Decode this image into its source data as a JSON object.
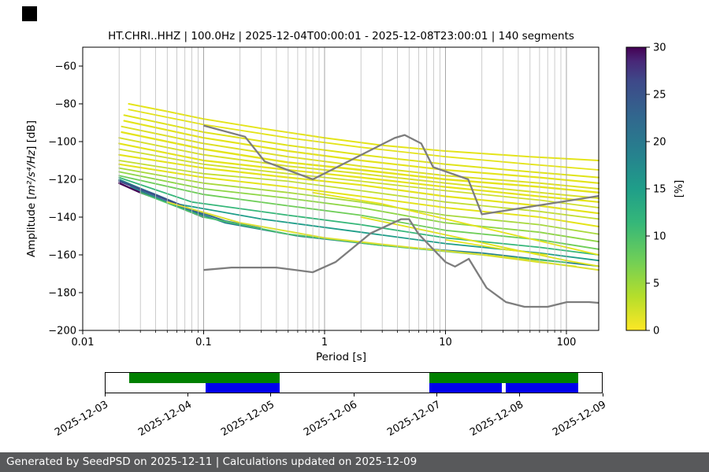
{
  "title": "HT.CHRI..HHZ | 100.0Hz | 2025-12-04T00:00:01 - 2025-12-08T23:00:01 | 140 segments",
  "footer": {
    "text": "Generated by SeedPSD on 2025-12-11 | Calculations updated on 2025-12-09"
  },
  "chart_data": {
    "type": "heatmap",
    "subtype": "seismic-ppsd",
    "title": "HT.CHRI..HHZ | 100.0Hz | 2025-12-04T00:00:01 - 2025-12-08T23:00:01 | 140 segments",
    "xlabel": "Period [s]",
    "ylabel": "Amplitude [m²/s⁴/Hz] [dB]",
    "ylabel_parts": {
      "prefix": "Amplitude [",
      "math": "m²/s⁴/Hz",
      "suffix": "] [dB]"
    },
    "xscale": "log",
    "xlim": [
      0.01,
      185
    ],
    "ylim": [
      -200,
      -50
    ],
    "x_ticks": [
      0.01,
      0.1,
      1,
      10,
      100
    ],
    "x_tick_labels": [
      "0.01",
      "0.1",
      "1",
      "10",
      "100"
    ],
    "y_ticks": [
      -60,
      -80,
      -100,
      -120,
      -140,
      -160,
      -180,
      -200
    ],
    "y_tick_labels": [
      "−60",
      "−80",
      "−100",
      "−120",
      "−140",
      "−160",
      "−180",
      "−200"
    ],
    "grid": "vertical-log",
    "colorbar": {
      "label": "[%]",
      "min": 0,
      "max": 30,
      "ticks": [
        0,
        5,
        10,
        15,
        20,
        25,
        30
      ],
      "colormap": "viridis_r",
      "stops": [
        {
          "t": 0,
          "c": "#fde725"
        },
        {
          "t": 0.12,
          "c": "#b5de2b"
        },
        {
          "t": 0.25,
          "c": "#6ece58"
        },
        {
          "t": 0.38,
          "c": "#35b779"
        },
        {
          "t": 0.5,
          "c": "#1f9e89"
        },
        {
          "t": 0.62,
          "c": "#26828e"
        },
        {
          "t": 0.75,
          "c": "#31688e"
        },
        {
          "t": 0.88,
          "c": "#3e4989"
        },
        {
          "t": 0.95,
          "c": "#482878"
        },
        {
          "t": 1,
          "c": "#440154"
        }
      ]
    },
    "noise_models": {
      "color": "#7d7d7d",
      "high": [
        [
          0.1,
          -91.5
        ],
        [
          0.22,
          -97.4
        ],
        [
          0.32,
          -110.5
        ],
        [
          0.8,
          -120.0
        ],
        [
          3.8,
          -98.1
        ],
        [
          4.6,
          -96.5
        ],
        [
          6.3,
          -101.0
        ],
        [
          7.9,
          -113.5
        ],
        [
          15.4,
          -120.0
        ],
        [
          20.0,
          -138.5
        ],
        [
          185.0,
          -128.8
        ]
      ],
      "low": [
        [
          0.1,
          -168.0
        ],
        [
          0.17,
          -166.7
        ],
        [
          0.4,
          -166.7
        ],
        [
          0.8,
          -169.2
        ],
        [
          1.24,
          -163.7
        ],
        [
          2.4,
          -148.6
        ],
        [
          4.3,
          -141.1
        ],
        [
          5.0,
          -141.1
        ],
        [
          6.0,
          -149.0
        ],
        [
          10.0,
          -163.8
        ],
        [
          12.0,
          -166.2
        ],
        [
          15.6,
          -162.1
        ],
        [
          21.9,
          -177.5
        ],
        [
          31.6,
          -185.0
        ],
        [
          45.0,
          -187.5
        ],
        [
          70.0,
          -187.5
        ],
        [
          101.0,
          -185.0
        ],
        [
          154.0,
          -185.0
        ],
        [
          185.0,
          -185.4
        ]
      ]
    },
    "ppsd_streaks": [
      {
        "c": "#e4e419",
        "w": 2,
        "p": [
          [
            0.024,
            -80
          ],
          [
            0.05,
            -84
          ],
          [
            0.1,
            -88
          ],
          [
            0.3,
            -93
          ],
          [
            1,
            -98
          ],
          [
            3,
            -102
          ],
          [
            10,
            -105
          ],
          [
            50,
            -108
          ],
          [
            185,
            -110
          ]
        ]
      },
      {
        "c": "#e4e419",
        "w": 1.8,
        "p": [
          [
            0.024,
            -83
          ],
          [
            0.1,
            -91
          ],
          [
            0.5,
            -98
          ],
          [
            2,
            -103
          ],
          [
            10,
            -108
          ],
          [
            50,
            -112
          ],
          [
            185,
            -115
          ]
        ]
      },
      {
        "c": "#dfe318",
        "w": 2,
        "p": [
          [
            0.022,
            -86
          ],
          [
            0.1,
            -95
          ],
          [
            0.5,
            -102
          ],
          [
            2,
            -107
          ],
          [
            10,
            -112
          ],
          [
            50,
            -116
          ],
          [
            185,
            -119
          ]
        ]
      },
      {
        "c": "#e4e419",
        "w": 2.2,
        "p": [
          [
            0.022,
            -89
          ],
          [
            0.1,
            -98
          ],
          [
            0.5,
            -105
          ],
          [
            2,
            -110
          ],
          [
            10,
            -115
          ],
          [
            60,
            -119
          ],
          [
            185,
            -122
          ]
        ]
      },
      {
        "c": "#dde025",
        "w": 2,
        "p": [
          [
            0.021,
            -92
          ],
          [
            0.1,
            -101
          ],
          [
            0.5,
            -108
          ],
          [
            2,
            -113
          ],
          [
            10,
            -118
          ],
          [
            60,
            -122
          ],
          [
            185,
            -125
          ]
        ]
      },
      {
        "c": "#e4e419",
        "w": 2.4,
        "p": [
          [
            0.021,
            -95
          ],
          [
            0.1,
            -104
          ],
          [
            0.5,
            -111
          ],
          [
            2,
            -115
          ],
          [
            10,
            -120
          ],
          [
            60,
            -124
          ],
          [
            185,
            -127
          ]
        ]
      },
      {
        "c": "#d8e02a",
        "w": 2,
        "p": [
          [
            0.02,
            -98
          ],
          [
            0.1,
            -107
          ],
          [
            0.5,
            -113
          ],
          [
            2,
            -117
          ],
          [
            10,
            -122
          ],
          [
            60,
            -127
          ],
          [
            185,
            -130
          ]
        ]
      },
      {
        "c": "#e4e419",
        "w": 2.2,
        "p": [
          [
            0.02,
            -101
          ],
          [
            0.1,
            -110
          ],
          [
            0.5,
            -115
          ],
          [
            2,
            -119
          ],
          [
            10,
            -124
          ],
          [
            60,
            -129
          ],
          [
            185,
            -132
          ]
        ]
      },
      {
        "c": "#cfdf2c",
        "w": 1.8,
        "p": [
          [
            0.02,
            -104
          ],
          [
            0.1,
            -112
          ],
          [
            0.5,
            -117
          ],
          [
            2,
            -121
          ],
          [
            10,
            -126
          ],
          [
            60,
            -131
          ],
          [
            185,
            -135
          ]
        ]
      },
      {
        "c": "#e4e419",
        "w": 2.2,
        "p": [
          [
            0.02,
            -107
          ],
          [
            0.1,
            -114
          ],
          [
            0.5,
            -119
          ],
          [
            2,
            -123
          ],
          [
            10,
            -129
          ],
          [
            60,
            -134
          ],
          [
            185,
            -138
          ]
        ]
      },
      {
        "c": "#c3de30",
        "w": 1.8,
        "p": [
          [
            0.02,
            -110
          ],
          [
            0.1,
            -117
          ],
          [
            0.5,
            -121
          ],
          [
            2,
            -126
          ],
          [
            10,
            -132
          ],
          [
            60,
            -137
          ],
          [
            185,
            -141
          ]
        ]
      },
      {
        "c": "#e4e419",
        "w": 2,
        "p": [
          [
            0.02,
            -112
          ],
          [
            0.1,
            -119
          ],
          [
            0.5,
            -124
          ],
          [
            2,
            -129
          ],
          [
            10,
            -135
          ],
          [
            60,
            -140
          ],
          [
            185,
            -145
          ]
        ]
      },
      {
        "c": "#a8d93c",
        "w": 1.8,
        "p": [
          [
            0.02,
            -114
          ],
          [
            0.1,
            -122
          ],
          [
            0.5,
            -127
          ],
          [
            2,
            -132
          ],
          [
            10,
            -139
          ],
          [
            60,
            -144
          ],
          [
            185,
            -149
          ]
        ]
      },
      {
        "c": "#8ed645",
        "w": 1.8,
        "p": [
          [
            0.02,
            -116
          ],
          [
            0.1,
            -125
          ],
          [
            0.5,
            -130
          ],
          [
            2,
            -135
          ],
          [
            10,
            -143
          ],
          [
            60,
            -148
          ],
          [
            185,
            -153
          ]
        ]
      },
      {
        "c": "#6ece58",
        "w": 1.8,
        "p": [
          [
            0.02,
            -118
          ],
          [
            0.1,
            -128
          ],
          [
            0.5,
            -134
          ],
          [
            2,
            -139
          ],
          [
            10,
            -147
          ],
          [
            60,
            -152
          ],
          [
            185,
            -157
          ]
        ]
      },
      {
        "c": "#35b779",
        "w": 1.8,
        "p": [
          [
            0.02,
            -119
          ],
          [
            0.08,
            -132
          ],
          [
            0.5,
            -139
          ],
          [
            2,
            -144
          ],
          [
            10,
            -151
          ],
          [
            60,
            -156
          ],
          [
            185,
            -160
          ]
        ]
      },
      {
        "c": "#1f9e89",
        "w": 1.8,
        "p": [
          [
            0.02,
            -120
          ],
          [
            0.06,
            -133
          ],
          [
            0.3,
            -141
          ],
          [
            2,
            -148
          ],
          [
            10,
            -154
          ],
          [
            60,
            -159
          ],
          [
            185,
            -163
          ]
        ]
      },
      {
        "c": "#31688e",
        "w": 2,
        "p": [
          [
            0.02,
            -120.5
          ],
          [
            0.04,
            -128
          ],
          [
            0.08,
            -136
          ],
          [
            0.15,
            -142
          ],
          [
            0.3,
            -146
          ]
        ]
      },
      {
        "c": "#3e4989",
        "w": 2,
        "p": [
          [
            0.02,
            -121
          ],
          [
            0.035,
            -127
          ],
          [
            0.06,
            -133
          ],
          [
            0.1,
            -139
          ]
        ]
      },
      {
        "c": "#440154",
        "w": 2.4,
        "p": [
          [
            0.02,
            -122
          ],
          [
            0.03,
            -127
          ],
          [
            0.045,
            -131
          ],
          [
            0.07,
            -136
          ],
          [
            0.1,
            -140
          ]
        ]
      },
      {
        "c": "#26828e",
        "w": 1.8,
        "p": [
          [
            0.025,
            -124
          ],
          [
            0.06,
            -134
          ],
          [
            0.15,
            -143
          ],
          [
            0.6,
            -150
          ],
          [
            3,
            -155
          ],
          [
            20,
            -159
          ],
          [
            185,
            -166
          ]
        ]
      },
      {
        "c": "#4ac16d",
        "w": 1.8,
        "p": [
          [
            0.03,
            -127
          ],
          [
            0.1,
            -140
          ],
          [
            0.5,
            -149
          ],
          [
            3,
            -155
          ],
          [
            20,
            -160
          ],
          [
            100,
            -164
          ]
        ]
      },
      {
        "c": "#dce030",
        "w": 2,
        "p": [
          [
            0.05,
            -132
          ],
          [
            0.2,
            -143
          ],
          [
            1,
            -151
          ],
          [
            5,
            -156
          ],
          [
            30,
            -161
          ],
          [
            185,
            -168
          ]
        ]
      },
      {
        "c": "#e4e419",
        "w": 1.8,
        "p": [
          [
            0.8,
            -127
          ],
          [
            3,
            -133
          ],
          [
            10,
            -141
          ],
          [
            40,
            -150
          ],
          [
            185,
            -160
          ]
        ]
      },
      {
        "c": "#dfe318",
        "w": 1.8,
        "p": [
          [
            2,
            -140
          ],
          [
            8,
            -148
          ],
          [
            30,
            -156
          ],
          [
            100,
            -163
          ],
          [
            185,
            -166
          ]
        ]
      },
      {
        "c": "#e4e419",
        "w": 1.6,
        "p": [
          [
            10,
            -152
          ],
          [
            30,
            -157
          ],
          [
            70,
            -160
          ]
        ]
      },
      {
        "c": "#d8e02a",
        "w": 1.6,
        "p": [
          [
            20,
            -160
          ],
          [
            60,
            -164
          ],
          [
            120,
            -166
          ]
        ]
      }
    ],
    "timeline": {
      "tick_labels": [
        "2025-12-03",
        "2025-12-04",
        "2025-12-05",
        "2025-12-06",
        "2025-12-07",
        "2025-12-08",
        "2025-12-09"
      ],
      "green_color": "#008000",
      "blue_color": "#0000ee",
      "green_segments": [
        [
          0.047,
          0.351
        ],
        [
          0.652,
          0.952
        ]
      ],
      "blue_segments": [
        [
          0.201,
          0.351
        ],
        [
          0.652,
          0.799
        ],
        [
          0.807,
          0.952
        ]
      ]
    }
  }
}
